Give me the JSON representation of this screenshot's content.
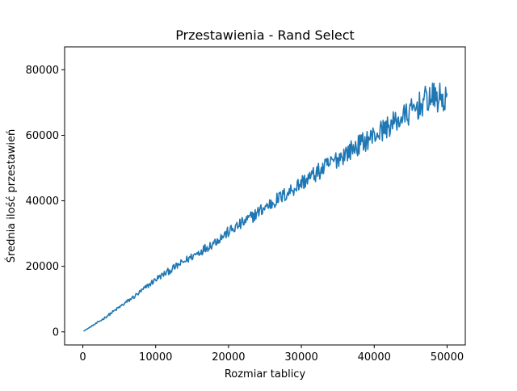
{
  "chart_data": {
    "type": "line",
    "title": "Przestawienia - Rand Select",
    "xlabel": "Rozmiar tablicy",
    "ylabel": "Średnia ilość przestawień",
    "xlim": [
      -2500,
      52500
    ],
    "ylim": [
      -4000,
      87000
    ],
    "x_ticks": [
      0,
      10000,
      20000,
      30000,
      40000,
      50000
    ],
    "x_tick_labels": [
      "0",
      "10000",
      "20000",
      "30000",
      "40000",
      "50000"
    ],
    "y_ticks": [
      0,
      20000,
      40000,
      60000,
      80000
    ],
    "y_tick_labels": [
      "0",
      "20000",
      "40000",
      "60000",
      "80000"
    ],
    "grid": false,
    "line_color": "#1f77b4",
    "series": [
      {
        "name": "",
        "x": [
          100,
          2500,
          5000,
          7500,
          10000,
          12500,
          15000,
          17500,
          20000,
          22500,
          25000,
          27500,
          30000,
          32500,
          35000,
          37500,
          40000,
          42500,
          45000,
          47500,
          50000
        ],
        "y": [
          200,
          3500,
          7500,
          11500,
          16000,
          19500,
          23000,
          26500,
          30500,
          34000,
          38000,
          41500,
          45500,
          49000,
          53000,
          56500,
          60000,
          63500,
          67000,
          71500,
          71000
        ],
        "noise": [
          0,
          300,
          500,
          700,
          900,
          1100,
          1300,
          1500,
          1700,
          1900,
          2100,
          2300,
          2500,
          2700,
          2900,
          3100,
          3300,
          3500,
          4000,
          4500,
          5000
        ]
      }
    ]
  }
}
